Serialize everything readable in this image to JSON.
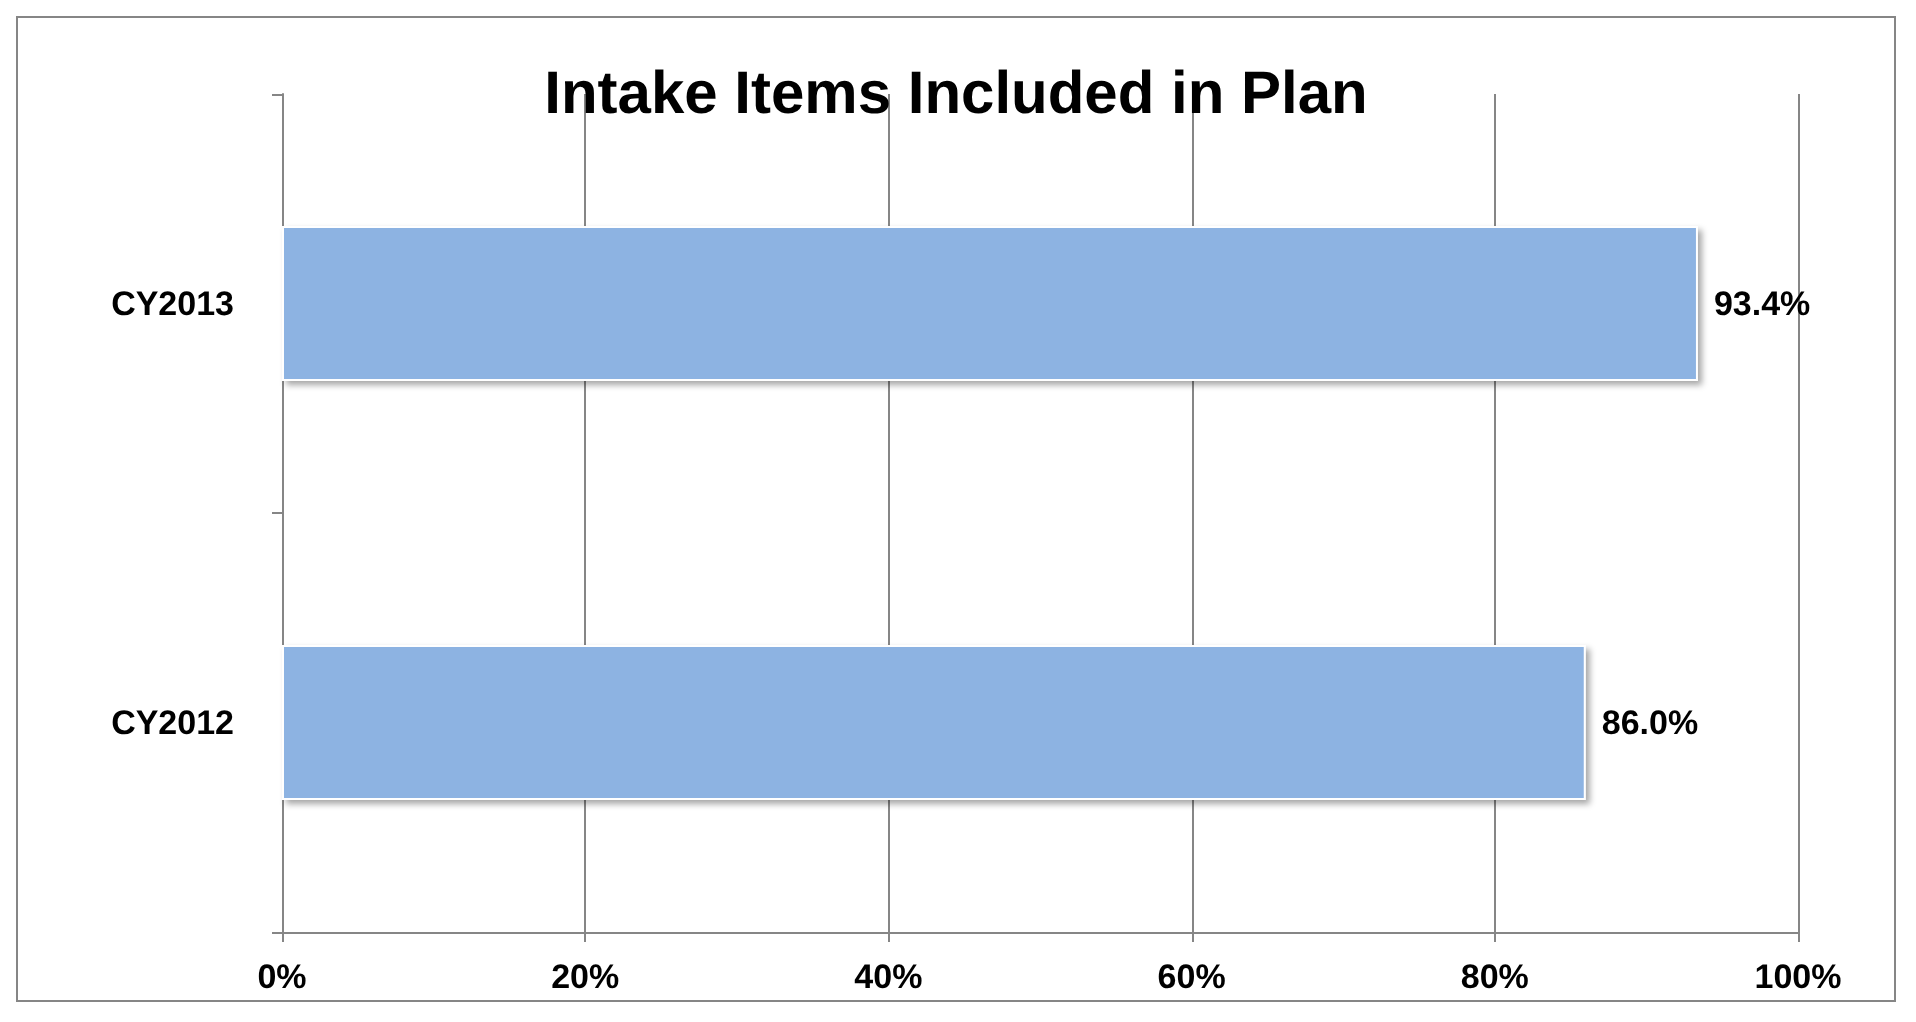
{
  "chart_data": {
    "type": "bar",
    "orientation": "horizontal",
    "title": "Intake Items Included in Plan",
    "categories": [
      "CY2013",
      "CY2012"
    ],
    "values": [
      93.4,
      86.0
    ],
    "color": "#8db3e2",
    "value_labels": [
      "93.4%",
      "86.0%"
    ],
    "xlim": [
      0,
      100
    ],
    "xticks": [
      {
        "value": 0,
        "label": "0%"
      },
      {
        "value": 20,
        "label": "20%"
      },
      {
        "value": 40,
        "label": "40%"
      },
      {
        "value": 60,
        "label": "60%"
      },
      {
        "value": 80,
        "label": "80%"
      },
      {
        "value": 100,
        "label": "100%"
      }
    ],
    "grid": "x"
  }
}
